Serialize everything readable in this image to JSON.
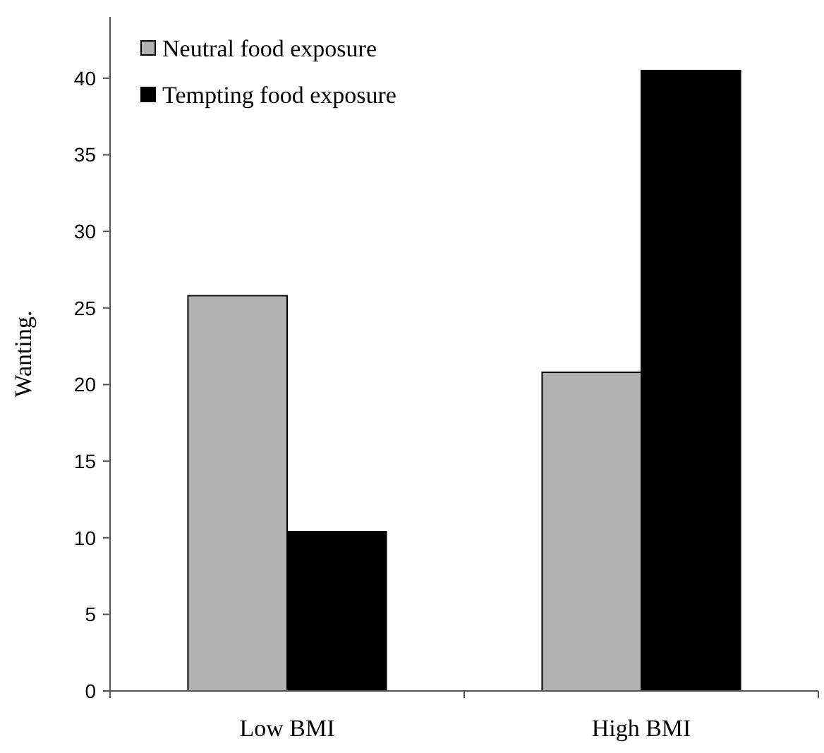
{
  "chart_data": {
    "type": "bar",
    "ylabel": "Wanting.",
    "categories": [
      "Low BMI",
      "High BMI"
    ],
    "series": [
      {
        "name": "Neutral food exposure",
        "color": "#b2b2b2",
        "values": [
          25.8,
          20.8
        ]
      },
      {
        "name": "Tempting food exposure",
        "color": "#000000",
        "values": [
          10.4,
          40.5
        ]
      }
    ],
    "ylim": [
      0,
      44
    ],
    "yticks": [
      0,
      5,
      10,
      15,
      20,
      25,
      30,
      35,
      40
    ],
    "grid": false,
    "legend": "top left"
  }
}
